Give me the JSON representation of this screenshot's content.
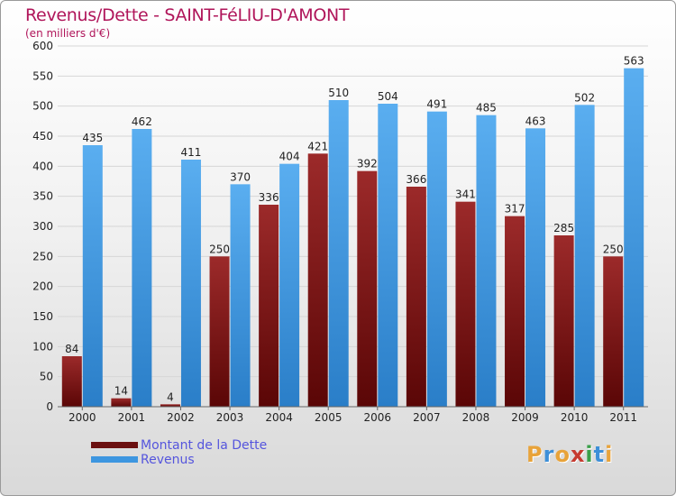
{
  "header": {
    "title": "Revenus/Dette - SAINT-FéLIU-D'AMONT",
    "subtitle": "(en milliers d'€)"
  },
  "legend": [
    {
      "label": "Montant de la Dette",
      "color": "#7a1414"
    },
    {
      "label": "Revenus",
      "color": "#3d96e0"
    }
  ],
  "logo": {
    "text": "Proxiti",
    "colors": [
      "#e8a33a",
      "#3d8fd8",
      "#e8a33a",
      "#c63a2f",
      "#3aa04a",
      "#3d8fd8",
      "#e8a33a"
    ]
  },
  "chart_data": {
    "type": "bar",
    "title": "Revenus/Dette - SAINT-FéLIU-D'AMONT",
    "ylabel": "(en milliers d'€)",
    "xlabel": "",
    "categories": [
      "2000",
      "2001",
      "2002",
      "2003",
      "2004",
      "2005",
      "2006",
      "2007",
      "2008",
      "2009",
      "2010",
      "2011"
    ],
    "series": [
      {
        "name": "Montant de la Dette",
        "color": "#7a1414",
        "values": [
          84,
          14,
          4,
          250,
          336,
          421,
          392,
          366,
          341,
          317,
          285,
          250
        ]
      },
      {
        "name": "Revenus",
        "color": "#3d96e0",
        "values": [
          435,
          462,
          411,
          370,
          404,
          510,
          504,
          491,
          485,
          463,
          502,
          563
        ]
      }
    ],
    "yticks": [
      0,
      50,
      100,
      150,
      200,
      250,
      300,
      350,
      400,
      450,
      500,
      550,
      600
    ],
    "ylim": [
      0,
      600
    ],
    "grid": true,
    "legend_position": "bottom-left"
  }
}
